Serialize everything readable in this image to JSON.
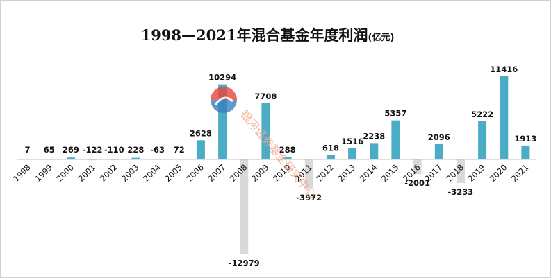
{
  "chart_data": {
    "type": "bar",
    "title": "1998—2021年混合基金年度利润",
    "unit": "(亿元)",
    "categories": [
      "1998",
      "1999",
      "2000",
      "2001",
      "2002",
      "2003",
      "2004",
      "2005",
      "2006",
      "2007",
      "2008",
      "2009",
      "2010",
      "2011",
      "2012",
      "2013",
      "2014",
      "2015",
      "2016",
      "2017",
      "2018",
      "2019",
      "2020",
      "2021"
    ],
    "values": [
      7,
      65,
      269,
      -122,
      -110,
      228,
      -63,
      72,
      2628,
      10294,
      -12979,
      7708,
      288,
      -3972,
      618,
      1516,
      2238,
      5357,
      -2001,
      2096,
      -3233,
      5222,
      11416,
      1913
    ],
    "ylim": [
      -14500,
      13000
    ],
    "grid": false,
    "legend": "none",
    "colors": {
      "positive": "#4bacc6",
      "negative": "#d9d9d9"
    }
  },
  "watermark": {
    "text": "银河证券基金研究中心",
    "colors": {
      "logo_top": "#e8463e",
      "logo_bottom": "#3a7fc1",
      "text": "#f2a58d"
    }
  }
}
